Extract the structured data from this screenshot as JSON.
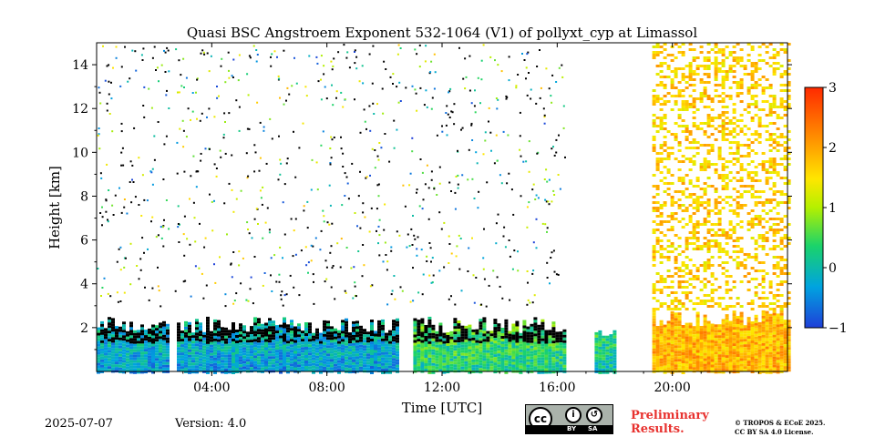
{
  "chart_data": {
    "type": "heatmap",
    "title": "Quasi BSC Angstroem Exponent 532-1064 (V1) of pollyxt_cyp at Limassol",
    "xlabel": "Time [UTC]",
    "ylabel": "Height [km]",
    "xlim_hours": [
      0,
      24
    ],
    "ylim_km": [
      0,
      15
    ],
    "x_ticks": [
      {
        "value": 4,
        "label": "04:00"
      },
      {
        "value": 8,
        "label": "08:00"
      },
      {
        "value": 12,
        "label": "12:00"
      },
      {
        "value": 16,
        "label": "16:00"
      },
      {
        "value": 20,
        "label": "20:00"
      }
    ],
    "y_ticks": [
      {
        "value": 2,
        "label": "2"
      },
      {
        "value": 4,
        "label": "4"
      },
      {
        "value": 6,
        "label": "6"
      },
      {
        "value": 8,
        "label": "8"
      },
      {
        "value": 10,
        "label": "10"
      },
      {
        "value": 12,
        "label": "12"
      },
      {
        "value": 14,
        "label": "14"
      }
    ],
    "colorbar": {
      "range": [
        -1,
        3
      ],
      "ticks": [
        {
          "value": -1,
          "label": "−1"
        },
        {
          "value": 0,
          "label": "0"
        },
        {
          "value": 1,
          "label": "1"
        },
        {
          "value": 2,
          "label": "2"
        },
        {
          "value": 3,
          "label": "3"
        }
      ],
      "colormap": "jet-like"
    },
    "data_gaps_hours": [
      [
        2.5,
        2.7
      ],
      [
        16.3,
        17.3
      ],
      [
        18.0,
        19.3
      ]
    ],
    "regions": [
      {
        "t_start": 0.0,
        "t_end": 10.5,
        "h_top_km": 2.5,
        "value_mean": -0.4
      },
      {
        "t_start": 11.0,
        "t_end": 16.3,
        "h_top_km": 2.5,
        "value_mean": 0.2
      },
      {
        "t_start": 17.3,
        "t_end": 18.0,
        "h_top_km": 2.3,
        "value_mean": 0.0
      },
      {
        "t_start": 19.3,
        "t_end": 24.0,
        "h_top_km": 2.8,
        "value_mean": 2.0
      },
      {
        "t_start": 19.3,
        "t_end": 24.0,
        "h_top_km": 15.0,
        "value_mean": 1.8
      }
    ]
  },
  "footer": {
    "date": "2025-07-07",
    "version": "Version: 4.0",
    "preliminary_line1": "Preliminary",
    "preliminary_line2": "Results.",
    "copyright_line1": "© TROPOS & ECoE 2025.",
    "copyright_line2": "CC BY SA 4.0 License.",
    "cc_badge": {
      "cc": "cc",
      "by": "BY",
      "sa": "SA"
    }
  },
  "colors": {
    "jet_stops": [
      "#1f3fd8",
      "#00a3e0",
      "#1ad36b",
      "#b4f000",
      "#ffe600",
      "#ff8a00",
      "#ff2a00"
    ]
  }
}
